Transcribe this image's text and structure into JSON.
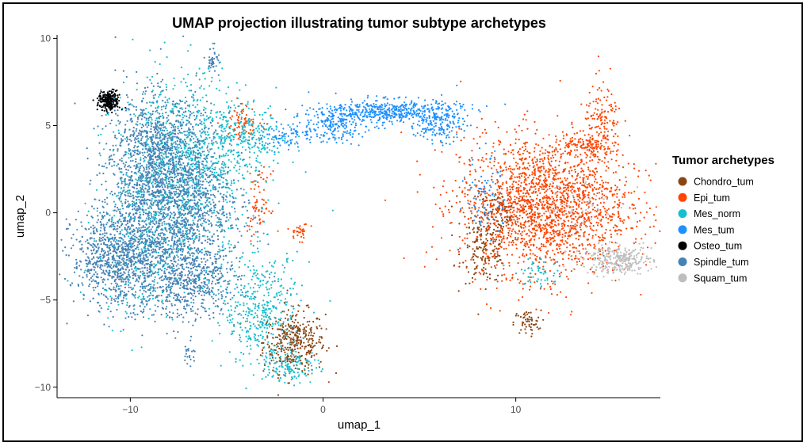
{
  "chart_data": {
    "type": "scatter",
    "title": "UMAP projection illustrating tumor subtype archetypes",
    "xlabel": "umap_1",
    "ylabel": "umap_2",
    "xlim": [
      -13.8,
      17.5
    ],
    "ylim": [
      -10.6,
      10.2
    ],
    "xticks": [
      -10,
      0,
      10
    ],
    "yticks": [
      -10,
      -5,
      0,
      5,
      10
    ],
    "grid": false,
    "legend": {
      "title": "Tumor archetypes",
      "placement": "right"
    },
    "series": [
      {
        "name": "Chondro_tum",
        "color": "#8B4513",
        "clusters": [
          {
            "cx": -1.5,
            "cy": -7.4,
            "sx": 0.8,
            "sy": 0.9,
            "n": 380
          },
          {
            "cx": 8.4,
            "cy": -2.2,
            "sx": 0.6,
            "sy": 0.9,
            "n": 170
          },
          {
            "cx": 10.6,
            "cy": -6.3,
            "sx": 0.35,
            "sy": 0.35,
            "n": 55
          },
          {
            "cx": 9.3,
            "cy": 0.2,
            "sx": 0.9,
            "sy": 0.7,
            "n": 120
          }
        ]
      },
      {
        "name": "Epi_tum",
        "color": "#FF4500",
        "clusters": [
          {
            "cx": 11.5,
            "cy": 0.4,
            "sx": 2.2,
            "sy": 2.0,
            "n": 2000
          },
          {
            "cx": 14.5,
            "cy": 5.0,
            "sx": 0.5,
            "sy": 1.2,
            "n": 150
          },
          {
            "cx": 13.5,
            "cy": 3.8,
            "sx": 0.8,
            "sy": 0.3,
            "n": 100
          },
          {
            "cx": -4.2,
            "cy": 5.3,
            "sx": 0.5,
            "sy": 0.5,
            "n": 70
          },
          {
            "cx": -3.3,
            "cy": 0.5,
            "sx": 0.3,
            "sy": 0.9,
            "n": 70
          },
          {
            "cx": -1.2,
            "cy": -1.1,
            "sx": 0.25,
            "sy": 0.25,
            "n": 30
          }
        ]
      },
      {
        "name": "Mes_norm",
        "color": "#17BECF",
        "clusters": [
          {
            "cx": -7.2,
            "cy": 2.5,
            "sx": 1.8,
            "sy": 2.6,
            "n": 1200
          },
          {
            "cx": -3.2,
            "cy": -5.6,
            "sx": 1.0,
            "sy": 1.6,
            "n": 420
          },
          {
            "cx": -4.0,
            "cy": 4.2,
            "sx": 1.3,
            "sy": 0.9,
            "n": 230
          },
          {
            "cx": -1.6,
            "cy": -8.8,
            "sx": 0.7,
            "sy": 0.5,
            "n": 120
          },
          {
            "cx": 11.2,
            "cy": -3.5,
            "sx": 0.6,
            "sy": 0.4,
            "n": 50
          },
          {
            "cx": -9.5,
            "cy": -2.0,
            "sx": 1.2,
            "sy": 2.0,
            "n": 300
          }
        ]
      },
      {
        "name": "Mes_tum",
        "color": "#1E90FF",
        "clusters": [
          {
            "cx": 3.5,
            "cy": 5.8,
            "sx": 1.8,
            "sy": 0.35,
            "n": 500
          },
          {
            "cx": 0.6,
            "cy": 5.0,
            "sx": 0.8,
            "sy": 0.5,
            "n": 180
          },
          {
            "cx": 6.0,
            "cy": 5.0,
            "sx": 0.6,
            "sy": 0.5,
            "n": 140
          },
          {
            "cx": -1.8,
            "cy": 4.5,
            "sx": 0.8,
            "sy": 0.4,
            "n": 90
          },
          {
            "cx": 8.5,
            "cy": 1.0,
            "sx": 0.5,
            "sy": 1.2,
            "n": 80
          }
        ]
      },
      {
        "name": "Osteo_tum",
        "color": "#000000",
        "clusters": [
          {
            "cx": -11.1,
            "cy": 6.4,
            "sx": 0.28,
            "sy": 0.28,
            "n": 240
          }
        ]
      },
      {
        "name": "Spindle_tum",
        "color": "#4682B4",
        "clusters": [
          {
            "cx": -7.8,
            "cy": 0.8,
            "sx": 1.5,
            "sy": 2.6,
            "n": 1700
          },
          {
            "cx": -10.6,
            "cy": -2.6,
            "sx": 1.2,
            "sy": 1.4,
            "n": 900
          },
          {
            "cx": -9.0,
            "cy": 3.6,
            "sx": 1.2,
            "sy": 1.6,
            "n": 500
          },
          {
            "cx": -6.8,
            "cy": -4.0,
            "sx": 1.2,
            "sy": 1.0,
            "n": 500
          },
          {
            "cx": -5.7,
            "cy": 8.8,
            "sx": 0.15,
            "sy": 0.35,
            "n": 40
          },
          {
            "cx": -6.9,
            "cy": -8.1,
            "sx": 0.15,
            "sy": 0.35,
            "n": 20
          }
        ]
      },
      {
        "name": "Squam_tum",
        "color": "#BEBEBE",
        "clusters": [
          {
            "cx": 15.3,
            "cy": -2.7,
            "sx": 0.9,
            "sy": 0.4,
            "n": 320
          },
          {
            "cx": 13.0,
            "cy": 0.5,
            "sx": 1.0,
            "sy": 0.8,
            "n": 60
          }
        ]
      }
    ]
  }
}
